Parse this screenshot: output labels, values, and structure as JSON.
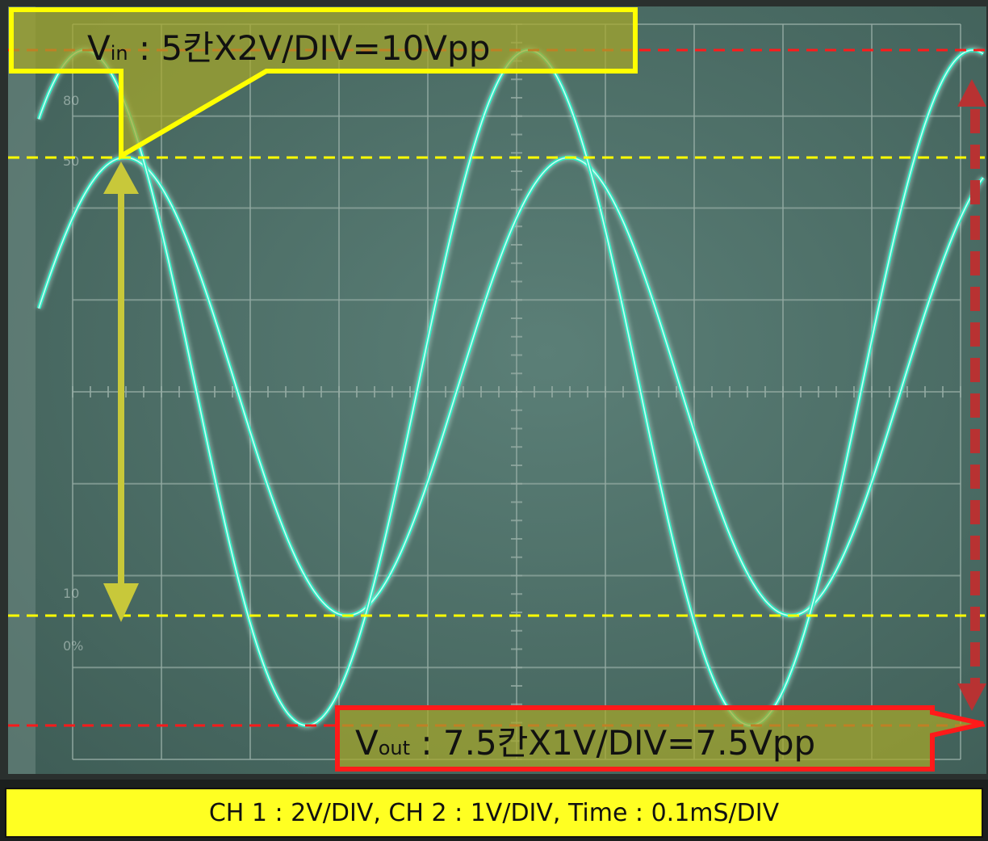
{
  "chart_data": {
    "type": "line",
    "title": "",
    "xlabel": "",
    "ylabel": "",
    "grid": true,
    "grid_divisions": {
      "x": 10,
      "y": 8
    },
    "screen_labels": [
      "80",
      "50",
      "10",
      "0%"
    ],
    "series": [
      {
        "channel": "CH 1",
        "volts_per_div": 2,
        "amplitude_div": 2.5,
        "peak_to_peak_div": 5,
        "vpp": 10
      },
      {
        "channel": "CH 2",
        "volts_per_div": 1,
        "amplitude_div": 3.75,
        "peak_to_peak_div": 7.5,
        "vpp": 7.5
      }
    ],
    "time_per_div_ms": 0.1,
    "periods_div": 5,
    "annotations": {
      "vin": {
        "prefix": "V",
        "sub": "in",
        "rest": " : 5칸X2V/DIV=10Vpp"
      },
      "vout": {
        "prefix": "V",
        "sub": "out",
        "rest": " : 7.5칸X1V/DIV=7.5Vpp"
      },
      "footer": "CH 1 : 2V/DIV, CH 2 : 1V/DIV, Time : 0.1mS/DIV"
    }
  },
  "colors": {
    "screen": "#4a6e66",
    "grid": "#94aba3",
    "trace": "#2fe8c0",
    "trace_glow": "#d8fff2",
    "vin_marker": "#ffff00",
    "vout_marker": "#ff1a1a",
    "vin_arrow": "#c8c83a",
    "vout_arrow": "#b83232"
  }
}
